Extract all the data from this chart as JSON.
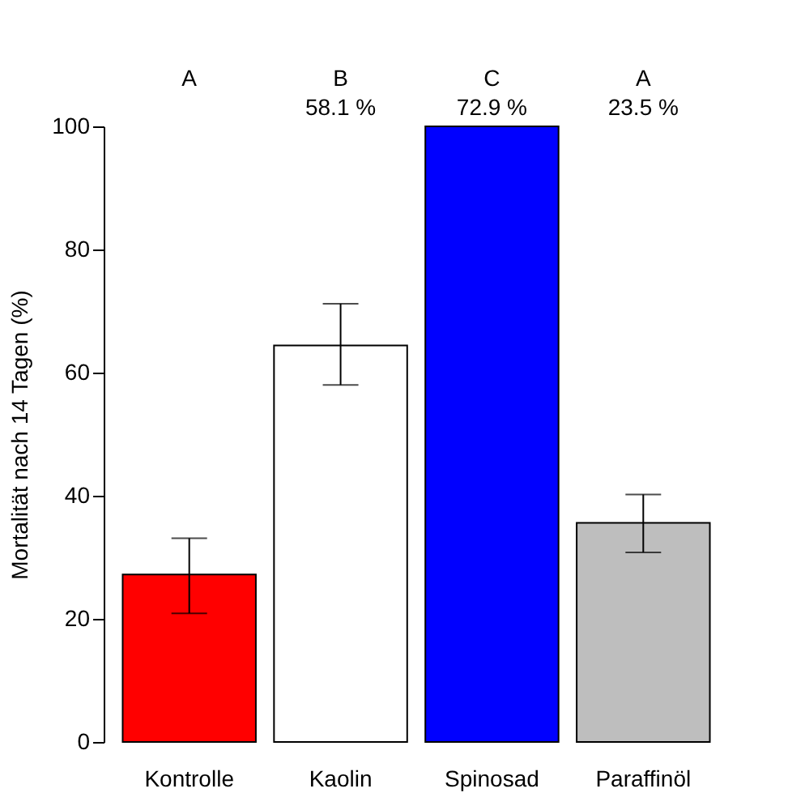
{
  "chart_data": {
    "type": "bar",
    "ylabel": "Mortalität nach 14 Tagen (%)",
    "categories": [
      "Kontrolle",
      "Kaolin",
      "Spinosad",
      "Paraffinöl"
    ],
    "values": [
      27.2,
      64.4,
      100,
      35.6
    ],
    "colors": [
      "#ff0000",
      "#ffffff",
      "#0000ff",
      "#bebebe"
    ],
    "errors": [
      [
        20.9,
        33.1
      ],
      [
        58.0,
        71.2
      ],
      null,
      [
        30.8,
        40.2
      ]
    ],
    "ylim": [
      0,
      100
    ],
    "yticks": [
      0,
      20,
      40,
      60,
      80,
      100
    ],
    "grid": false,
    "annotations": [
      "A",
      "B\n58.1 %",
      "C\n72.9 %",
      "A\n23.5 %"
    ]
  }
}
